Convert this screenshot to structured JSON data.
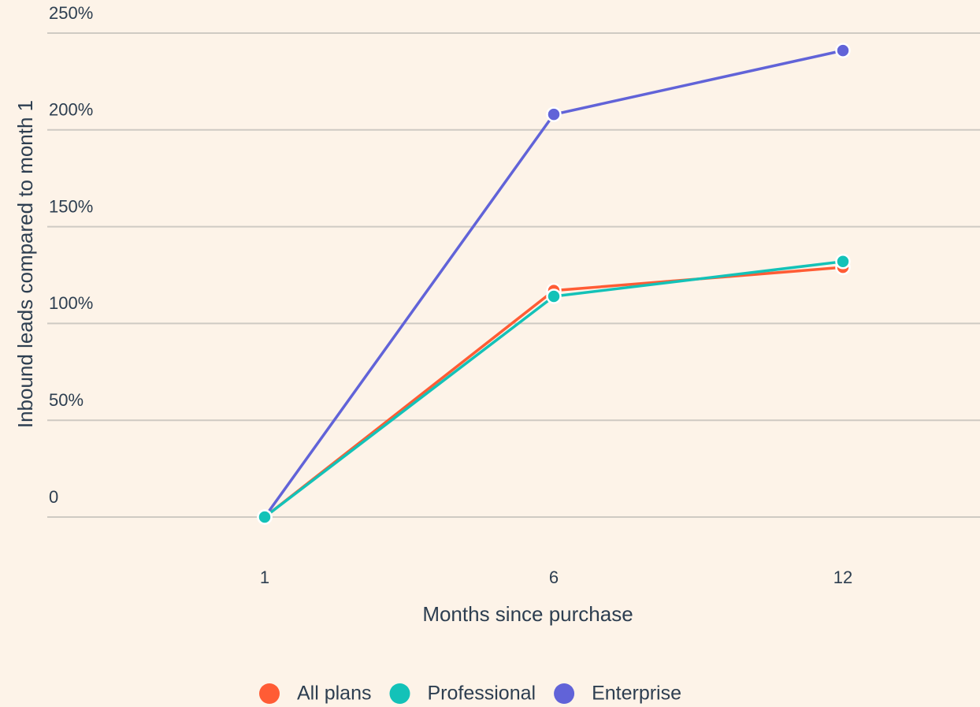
{
  "chart_data": {
    "type": "line",
    "x_label": "Months since purchase",
    "y_label": "Inbound leads compared to month 1",
    "categories": [
      "1",
      "6",
      "12"
    ],
    "series": [
      {
        "name": "All plans",
        "color": "#ff5c35",
        "values": [
          0,
          117,
          129
        ]
      },
      {
        "name": "Professional",
        "color": "#13c2b8",
        "values": [
          0,
          114,
          132
        ]
      },
      {
        "name": "Enterprise",
        "color": "#6163d8",
        "values": [
          0,
          208,
          241
        ]
      }
    ],
    "ylim": [
      0,
      250
    ],
    "yticks": [
      0,
      {
        "value": 50,
        "label": "50%"
      },
      {
        "value": 100,
        "label": "100%"
      },
      {
        "value": 150,
        "label": "150%"
      },
      {
        "value": 200,
        "label": "200%"
      },
      {
        "value": 250,
        "label": "250%"
      }
    ],
    "grid": true,
    "legend": "bottom"
  }
}
